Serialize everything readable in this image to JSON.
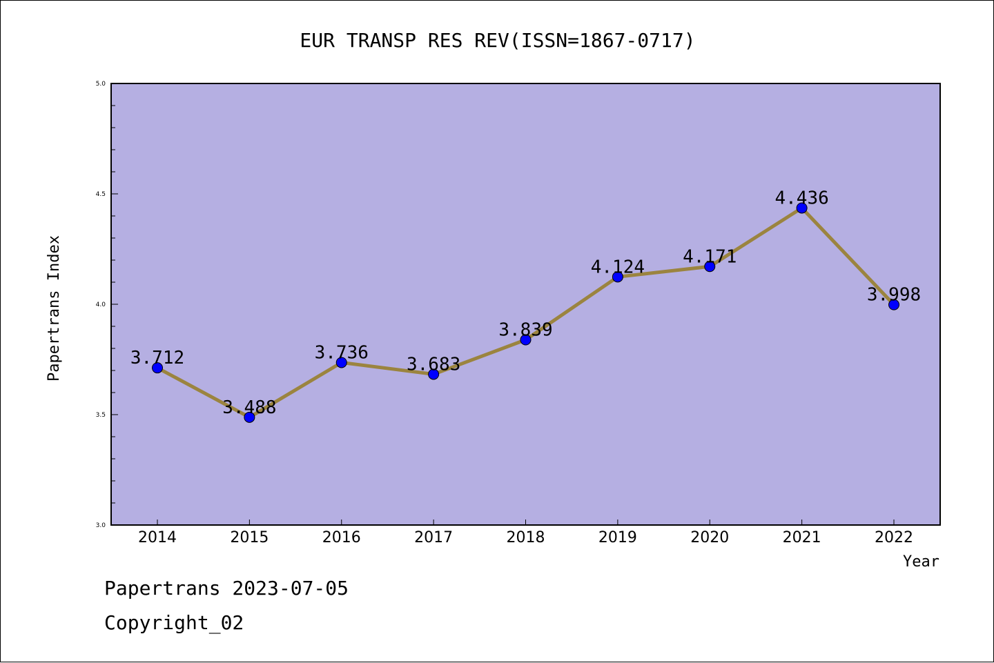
{
  "chart_data": {
    "type": "line",
    "title": "EUR TRANSP RES REV(ISSN=1867-0717)",
    "xlabel": "Year",
    "ylabel": "Papertrans Index",
    "categories": [
      "2014",
      "2015",
      "2016",
      "2017",
      "2018",
      "2019",
      "2020",
      "2021",
      "2022"
    ],
    "values": [
      3.712,
      3.488,
      3.736,
      3.683,
      3.839,
      4.124,
      4.171,
      4.436,
      3.998
    ],
    "data_labels": [
      "3.712",
      "3.488",
      "3.736",
      "3.683",
      "3.839",
      "4.124",
      "4.171",
      "4.436",
      "3.998"
    ],
    "ylim": [
      3.0,
      5.0
    ],
    "yticks": [
      "3.0",
      "3.5",
      "4.0",
      "4.5",
      "5.0"
    ],
    "grid": false,
    "colors": {
      "plot_background": "#b5afe2",
      "line": "#9b843f",
      "marker": "#0000ff"
    }
  },
  "footer": {
    "date_line": "Papertrans 2023-07-05",
    "copyright": "Copyright_02"
  }
}
